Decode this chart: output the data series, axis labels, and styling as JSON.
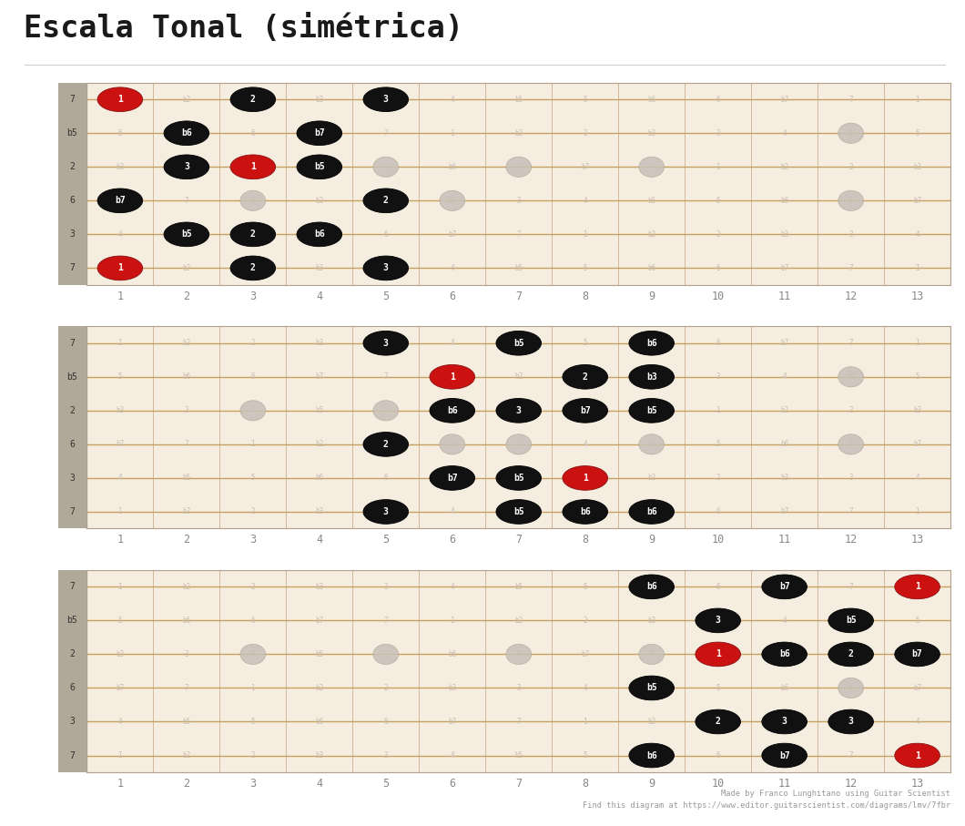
{
  "title": "Escala Tonal (simétrica)",
  "footer_line1": "Made by Franco Lunghitano using Guitar Scientist",
  "footer_line2": "Find this diagram at https://www.editor.guitarscientist.com/diagrams/lmv/7fbr",
  "bg_color": "#ffffff",
  "fretboard_bg": "#f5ede0",
  "sidebar_bg": "#b0a898",
  "string_line_color": "#c8a060",
  "fret_line_color": "#d0b898",
  "border_color": "#b0a090",
  "ghost_dot_color": "#c8c0b8",
  "string_labels": [
    "7",
    "b5",
    "2",
    "6",
    "3",
    "7"
  ],
  "n_frets": 13,
  "n_strings": 6,
  "cell_labels": [
    [
      "1",
      "b2",
      "2",
      "b3",
      "3",
      "4",
      "b5",
      "5",
      "b6",
      "6",
      "b7",
      "7",
      "1"
    ],
    [
      "5",
      "b6",
      "6",
      "b7",
      "7",
      "1",
      "b2",
      "2",
      "b3",
      "3",
      "4",
      "b5",
      "5"
    ],
    [
      "b3",
      "3",
      "4",
      "b5",
      "5",
      "b6",
      "6",
      "b7",
      "7",
      "1",
      "b2",
      "2",
      "b3"
    ],
    [
      "b7",
      "7",
      "1",
      "b2",
      "2",
      "b3",
      "3",
      "4",
      "b5",
      "5",
      "b6",
      "6",
      "b7"
    ],
    [
      "4",
      "b5",
      "5",
      "b6",
      "6",
      "b7",
      "7",
      "1",
      "b2",
      "2",
      "b3",
      "3",
      "4"
    ],
    [
      "1",
      "b2",
      "2",
      "b3",
      "3",
      "4",
      "b5",
      "5",
      "b6",
      "6",
      "b7",
      "7",
      "1"
    ]
  ],
  "diagrams": [
    {
      "dots": [
        {
          "fret": 1,
          "string": 0,
          "label": "1",
          "color": "red"
        },
        {
          "fret": 2,
          "string": 1,
          "label": "b6",
          "color": "black"
        },
        {
          "fret": 2,
          "string": 2,
          "label": "3",
          "color": "black"
        },
        {
          "fret": 1,
          "string": 3,
          "label": "b7",
          "color": "black"
        },
        {
          "fret": 2,
          "string": 4,
          "label": "b5",
          "color": "black"
        },
        {
          "fret": 1,
          "string": 5,
          "label": "1",
          "color": "red"
        },
        {
          "fret": 3,
          "string": 0,
          "label": "2",
          "color": "black"
        },
        {
          "fret": 3,
          "string": 2,
          "label": "1",
          "color": "red"
        },
        {
          "fret": 3,
          "string": 4,
          "label": "2",
          "color": "black"
        },
        {
          "fret": 3,
          "string": 5,
          "label": "2",
          "color": "black"
        },
        {
          "fret": 4,
          "string": 1,
          "label": "b7",
          "color": "black"
        },
        {
          "fret": 4,
          "string": 2,
          "label": "b5",
          "color": "black"
        },
        {
          "fret": 4,
          "string": 4,
          "label": "b6",
          "color": "black"
        },
        {
          "fret": 5,
          "string": 0,
          "label": "3",
          "color": "black"
        },
        {
          "fret": 5,
          "string": 3,
          "label": "2",
          "color": "black"
        },
        {
          "fret": 5,
          "string": 5,
          "label": "3",
          "color": "black"
        }
      ],
      "ghost_dots": [
        {
          "fret": 3,
          "string": 3
        },
        {
          "fret": 5,
          "string": 2
        },
        {
          "fret": 6,
          "string": 3
        },
        {
          "fret": 7,
          "string": 2
        },
        {
          "fret": 9,
          "string": 2
        },
        {
          "fret": 12,
          "string": 1
        },
        {
          "fret": 12,
          "string": 3
        }
      ]
    },
    {
      "dots": [
        {
          "fret": 5,
          "string": 0,
          "label": "3",
          "color": "black"
        },
        {
          "fret": 6,
          "string": 1,
          "label": "1",
          "color": "red"
        },
        {
          "fret": 6,
          "string": 2,
          "label": "b6",
          "color": "black"
        },
        {
          "fret": 5,
          "string": 3,
          "label": "2",
          "color": "black"
        },
        {
          "fret": 6,
          "string": 4,
          "label": "b7",
          "color": "black"
        },
        {
          "fret": 5,
          "string": 5,
          "label": "3",
          "color": "black"
        },
        {
          "fret": 7,
          "string": 0,
          "label": "b5",
          "color": "black"
        },
        {
          "fret": 7,
          "string": 2,
          "label": "3",
          "color": "black"
        },
        {
          "fret": 7,
          "string": 4,
          "label": "b5",
          "color": "black"
        },
        {
          "fret": 7,
          "string": 5,
          "label": "b5",
          "color": "black"
        },
        {
          "fret": 8,
          "string": 1,
          "label": "2",
          "color": "black"
        },
        {
          "fret": 8,
          "string": 2,
          "label": "b7",
          "color": "black"
        },
        {
          "fret": 8,
          "string": 4,
          "label": "1",
          "color": "red"
        },
        {
          "fret": 8,
          "string": 5,
          "label": "b6",
          "color": "black"
        },
        {
          "fret": 9,
          "string": 0,
          "label": "b6",
          "color": "black"
        },
        {
          "fret": 9,
          "string": 1,
          "label": "b3",
          "color": "black"
        },
        {
          "fret": 9,
          "string": 2,
          "label": "b5",
          "color": "black"
        },
        {
          "fret": 9,
          "string": 5,
          "label": "b6",
          "color": "black"
        }
      ],
      "ghost_dots": [
        {
          "fret": 3,
          "string": 2
        },
        {
          "fret": 5,
          "string": 2
        },
        {
          "fret": 6,
          "string": 3
        },
        {
          "fret": 7,
          "string": 3
        },
        {
          "fret": 9,
          "string": 3
        },
        {
          "fret": 12,
          "string": 1
        },
        {
          "fret": 12,
          "string": 3
        }
      ]
    },
    {
      "dots": [
        {
          "fret": 9,
          "string": 0,
          "label": "b6",
          "color": "black"
        },
        {
          "fret": 10,
          "string": 1,
          "label": "3",
          "color": "black"
        },
        {
          "fret": 10,
          "string": 2,
          "label": "1",
          "color": "red"
        },
        {
          "fret": 9,
          "string": 3,
          "label": "b5",
          "color": "black"
        },
        {
          "fret": 10,
          "string": 4,
          "label": "2",
          "color": "black"
        },
        {
          "fret": 9,
          "string": 5,
          "label": "b6",
          "color": "black"
        },
        {
          "fret": 11,
          "string": 0,
          "label": "b7",
          "color": "black"
        },
        {
          "fret": 11,
          "string": 2,
          "label": "b6",
          "color": "black"
        },
        {
          "fret": 11,
          "string": 4,
          "label": "3",
          "color": "black"
        },
        {
          "fret": 11,
          "string": 5,
          "label": "b7",
          "color": "black"
        },
        {
          "fret": 12,
          "string": 1,
          "label": "b5",
          "color": "black"
        },
        {
          "fret": 12,
          "string": 2,
          "label": "2",
          "color": "black"
        },
        {
          "fret": 12,
          "string": 4,
          "label": "3",
          "color": "black"
        },
        {
          "fret": 13,
          "string": 0,
          "label": "1",
          "color": "red"
        },
        {
          "fret": 13,
          "string": 2,
          "label": "b7",
          "color": "black"
        },
        {
          "fret": 13,
          "string": 5,
          "label": "1",
          "color": "red"
        }
      ],
      "ghost_dots": [
        {
          "fret": 3,
          "string": 2
        },
        {
          "fret": 5,
          "string": 2
        },
        {
          "fret": 7,
          "string": 2
        },
        {
          "fret": 9,
          "string": 2
        },
        {
          "fret": 12,
          "string": 3
        }
      ]
    }
  ]
}
